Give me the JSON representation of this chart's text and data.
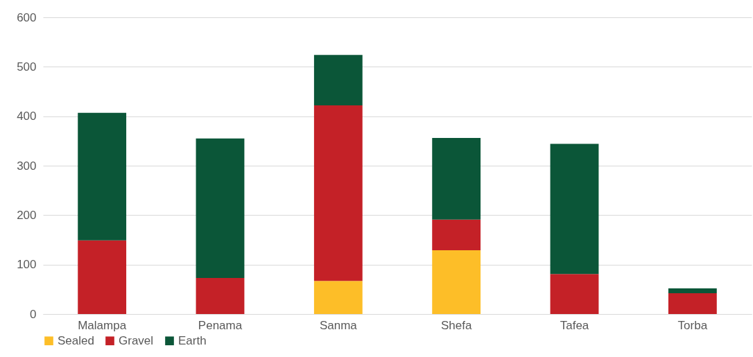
{
  "chart_data": {
    "type": "bar",
    "stacked": true,
    "categories": [
      "Malampa",
      "Penama",
      "Sanma",
      "Shefa",
      "Tafea",
      "Torba"
    ],
    "series": [
      {
        "name": "Sealed",
        "color": "#fdbe28",
        "values": [
          0,
          0,
          67,
          129,
          0,
          0
        ]
      },
      {
        "name": "Gravel",
        "color": "#c42127",
        "values": [
          149,
          73,
          355,
          62,
          81,
          42
        ]
      },
      {
        "name": "Earth",
        "color": "#0b5638",
        "values": [
          258,
          282,
          102,
          165,
          263,
          10
        ]
      }
    ],
    "ylim": [
      0,
      600
    ],
    "yticks": [
      0,
      100,
      200,
      300,
      400,
      500,
      600
    ],
    "grid": "y",
    "legend": "bottom"
  }
}
